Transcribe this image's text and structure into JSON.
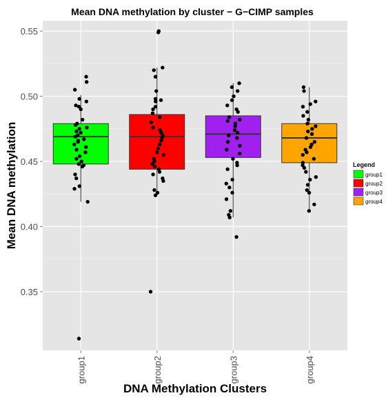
{
  "chart_data": {
    "type": "boxplot",
    "title": "Mean DNA methylation by cluster − G−CIMP samples",
    "xlabel": "DNA Methylation Clusters",
    "ylabel": "Mean DNA methylation",
    "categories": [
      "group1",
      "group2",
      "group3",
      "group4"
    ],
    "ylim": [
      0.305,
      0.558
    ],
    "yticks": [
      0.35,
      0.4,
      0.45,
      0.5,
      0.55
    ],
    "ytick_labels": [
      "0.35",
      "0.40",
      "0.45",
      "0.50",
      "0.55"
    ],
    "grid": true,
    "legend": {
      "title": "Legend",
      "position": "right",
      "entries": [
        "group1",
        "group2",
        "group3",
        "group4"
      ]
    },
    "colors": {
      "group1": "#00ff00",
      "group2": "#ff0000",
      "group3": "#a020f0",
      "group4": "#ffa500",
      "panel": "#e5e5e5",
      "grid": "#ffffff"
    },
    "boxes": [
      {
        "group": "group1",
        "min": 0.419,
        "q1": 0.448,
        "median": 0.469,
        "q3": 0.479,
        "max": 0.501
      },
      {
        "group": "group2",
        "min": 0.424,
        "q1": 0.444,
        "median": 0.469,
        "q3": 0.486,
        "max": 0.522
      },
      {
        "group": "group3",
        "min": 0.407,
        "q1": 0.453,
        "median": 0.471,
        "q3": 0.485,
        "max": 0.51
      },
      {
        "group": "group4",
        "min": 0.412,
        "q1": 0.449,
        "median": 0.468,
        "q3": 0.479,
        "max": 0.507
      }
    ],
    "points": [
      {
        "group": "group1",
        "values": [
          0.515,
          0.511,
          0.505,
          0.498,
          0.496,
          0.493,
          0.492,
          0.49,
          0.482,
          0.479,
          0.478,
          0.476,
          0.475,
          0.473,
          0.472,
          0.47,
          0.469,
          0.467,
          0.466,
          0.465,
          0.463,
          0.461,
          0.459,
          0.457,
          0.454,
          0.452,
          0.45,
          0.448,
          0.447,
          0.446,
          0.44,
          0.437,
          0.431,
          0.429,
          0.419,
          0.314
        ]
      },
      {
        "group": "group2",
        "values": [
          0.55,
          0.549,
          0.522,
          0.52,
          0.515,
          0.504,
          0.498,
          0.497,
          0.496,
          0.492,
          0.49,
          0.487,
          0.484,
          0.48,
          0.476,
          0.474,
          0.472,
          0.47,
          0.468,
          0.466,
          0.463,
          0.46,
          0.457,
          0.455,
          0.452,
          0.45,
          0.448,
          0.446,
          0.444,
          0.442,
          0.44,
          0.437,
          0.435,
          0.428,
          0.426,
          0.424,
          0.35
        ]
      },
      {
        "group": "group3",
        "values": [
          0.51,
          0.507,
          0.504,
          0.5,
          0.497,
          0.493,
          0.49,
          0.488,
          0.484,
          0.482,
          0.481,
          0.479,
          0.477,
          0.474,
          0.472,
          0.47,
          0.468,
          0.465,
          0.462,
          0.459,
          0.456,
          0.452,
          0.449,
          0.447,
          0.444,
          0.436,
          0.433,
          0.43,
          0.426,
          0.421,
          0.412,
          0.409,
          0.407,
          0.392
        ]
      },
      {
        "group": "group4",
        "values": [
          0.507,
          0.504,
          0.496,
          0.494,
          0.492,
          0.488,
          0.485,
          0.482,
          0.479,
          0.477,
          0.475,
          0.473,
          0.471,
          0.468,
          0.465,
          0.463,
          0.461,
          0.459,
          0.457,
          0.455,
          0.452,
          0.449,
          0.447,
          0.445,
          0.442,
          0.438,
          0.436,
          0.432,
          0.428,
          0.426,
          0.417,
          0.412
        ]
      }
    ]
  }
}
